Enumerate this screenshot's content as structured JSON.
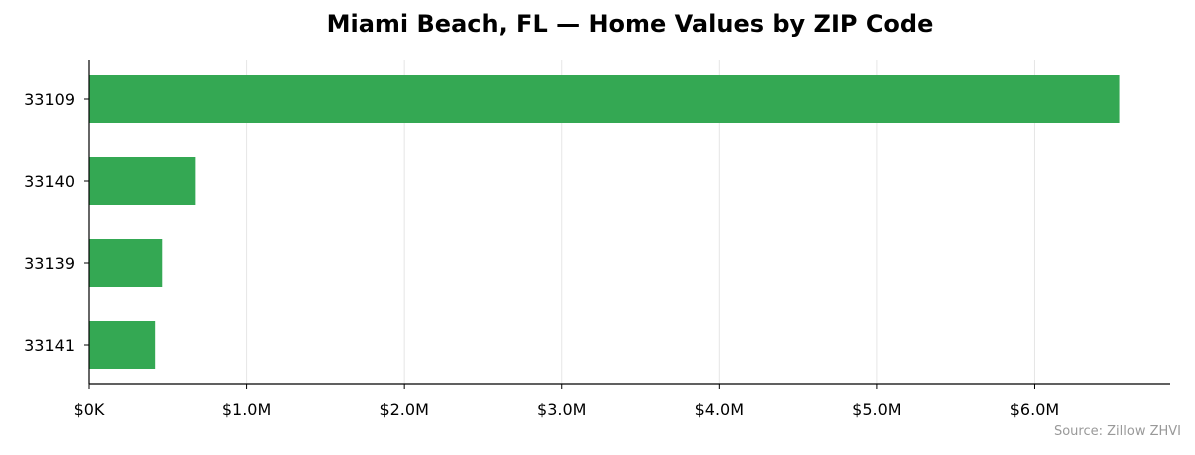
{
  "chart_data": {
    "type": "bar",
    "orientation": "horizontal",
    "title": "Miami Beach, FL — Home Values by ZIP Code",
    "categories": [
      "33109",
      "33140",
      "33139",
      "33141"
    ],
    "values": [
      6540000,
      675000,
      465000,
      420000
    ],
    "xlim": [
      0,
      6860000
    ],
    "x_ticks": [
      0,
      1000000,
      2000000,
      3000000,
      4000000,
      5000000,
      6000000
    ],
    "x_tick_labels": [
      "$0K",
      "$1.0M",
      "$2.0M",
      "$3.0M",
      "$4.0M",
      "$5.0M",
      "$6.0M"
    ],
    "xlabel": "",
    "ylabel": "",
    "grid": "vertical",
    "bar_color": "#34a853",
    "source": "Source: Zillow ZHVI"
  }
}
